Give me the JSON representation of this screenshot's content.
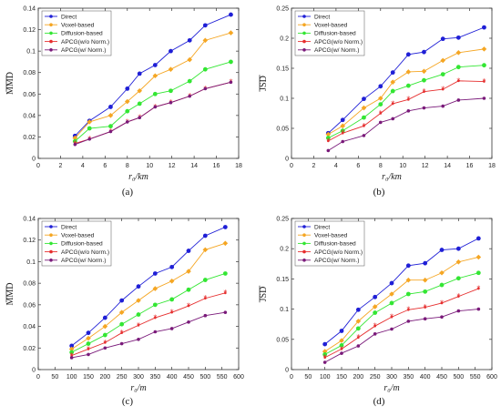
{
  "chart_data": [
    {
      "type": "line",
      "panel_label": "(a)",
      "xlabel": "r₀/km",
      "ylabel": "MMD",
      "xlim": [
        0,
        18
      ],
      "ylim": [
        0,
        0.14
      ],
      "xticks": [
        0,
        2,
        4,
        6,
        8,
        10,
        12,
        14,
        16,
        18
      ],
      "yticks": [
        0,
        0.02,
        0.04,
        0.06,
        0.08,
        0.1,
        0.12,
        0.14
      ],
      "xtick_labels": [
        "0",
        "2",
        "4",
        "6",
        "8",
        "10",
        "12",
        "14",
        "16",
        "18"
      ],
      "ytick_labels": [
        "0",
        "0.02",
        "0.04",
        "0.06",
        "0.08",
        "0.1",
        "0.12",
        "0.14"
      ],
      "grid": false,
      "legend_position": "top-left",
      "x": [
        3.3,
        4.6,
        6.5,
        8.0,
        9.1,
        10.5,
        11.9,
        13.6,
        15.0,
        17.3
      ],
      "series": [
        {
          "name": "Direct",
          "color": "#1f1fd6",
          "values": [
            0.021,
            0.035,
            0.048,
            0.065,
            0.079,
            0.087,
            0.1,
            0.11,
            0.124,
            0.134
          ]
        },
        {
          "name": "Voxel-based",
          "color": "#f5a623",
          "values": [
            0.019,
            0.034,
            0.04,
            0.053,
            0.063,
            0.077,
            0.083,
            0.092,
            0.11,
            0.117
          ]
        },
        {
          "name": "Diffusion-based",
          "color": "#33e633",
          "values": [
            0.016,
            0.028,
            0.03,
            0.044,
            0.051,
            0.06,
            0.063,
            0.072,
            0.083,
            0.09
          ]
        },
        {
          "name": "APCG(w/o Norm.)",
          "color": "#e62e2e",
          "values": [
            0.014,
            0.018,
            0.025,
            0.034,
            0.038,
            0.048,
            0.052,
            0.058,
            0.065,
            0.071
          ]
        },
        {
          "name": "APCG(w/ Norm.)",
          "color": "#7a1a7a",
          "values": [
            0.013,
            0.018,
            0.025,
            0.034,
            0.038,
            0.048,
            0.052,
            0.058,
            0.065,
            0.071
          ]
        }
      ]
    },
    {
      "type": "line",
      "panel_label": "(b)",
      "xlabel": "r₀/km",
      "ylabel": "JSD",
      "xlim": [
        0,
        18
      ],
      "ylim": [
        0,
        0.25
      ],
      "xticks": [
        0,
        2,
        4,
        6,
        8,
        10,
        12,
        14,
        16,
        18
      ],
      "yticks": [
        0,
        0.05,
        0.1,
        0.15,
        0.2,
        0.25
      ],
      "xtick_labels": [
        "0",
        "2",
        "4",
        "6",
        "8",
        "10",
        "12",
        "14",
        "16",
        "18"
      ],
      "ytick_labels": [
        "0",
        "0.05",
        "0.1",
        "0.15",
        "0.2",
        "0.25"
      ],
      "grid": false,
      "legend_position": "top-left",
      "x": [
        3.3,
        4.6,
        6.5,
        8.0,
        9.1,
        10.5,
        11.9,
        13.6,
        15.0,
        17.3
      ],
      "series": [
        {
          "name": "Direct",
          "color": "#1f1fd6",
          "values": [
            0.042,
            0.064,
            0.099,
            0.12,
            0.143,
            0.173,
            0.177,
            0.199,
            0.201,
            0.218
          ]
        },
        {
          "name": "Voxel-based",
          "color": "#f5a623",
          "values": [
            0.04,
            0.054,
            0.084,
            0.1,
            0.127,
            0.144,
            0.145,
            0.163,
            0.176,
            0.182
          ]
        },
        {
          "name": "Diffusion-based",
          "color": "#33e633",
          "values": [
            0.034,
            0.046,
            0.068,
            0.09,
            0.112,
            0.121,
            0.13,
            0.14,
            0.152,
            0.155
          ]
        },
        {
          "name": "APCG(w/o Norm.)",
          "color": "#e62e2e",
          "values": [
            0.029,
            0.042,
            0.054,
            0.075,
            0.091,
            0.098,
            0.111,
            0.115,
            0.129,
            0.128
          ]
        },
        {
          "name": "APCG(w/ Norm.)",
          "color": "#7a1a7a",
          "values": [
            0.013,
            0.028,
            0.038,
            0.06,
            0.066,
            0.079,
            0.084,
            0.087,
            0.097,
            0.1
          ]
        }
      ]
    },
    {
      "type": "line",
      "panel_label": "(c)",
      "xlabel": "r₀/m",
      "ylabel": "MMD",
      "xlim": [
        0,
        600
      ],
      "ylim": [
        0,
        0.14
      ],
      "xticks": [
        0,
        50,
        100,
        150,
        200,
        250,
        300,
        350,
        400,
        450,
        500,
        550,
        600
      ],
      "yticks": [
        0,
        0.02,
        0.04,
        0.06,
        0.08,
        0.1,
        0.12,
        0.14
      ],
      "xtick_labels": [
        "0",
        "50",
        "100",
        "150",
        "200",
        "250",
        "300",
        "350",
        "400",
        "450",
        "500",
        "550",
        "600"
      ],
      "ytick_labels": [
        "0",
        "0.02",
        "0.04",
        "0.06",
        "0.08",
        "0.1",
        "0.12",
        "0.14"
      ],
      "grid": false,
      "legend_position": "top-left",
      "x": [
        100,
        150,
        200,
        250,
        300,
        350,
        400,
        450,
        500,
        560
      ],
      "series": [
        {
          "name": "Direct",
          "color": "#1f1fd6",
          "values": [
            0.022,
            0.034,
            0.048,
            0.064,
            0.077,
            0.089,
            0.095,
            0.11,
            0.124,
            0.132
          ]
        },
        {
          "name": "Voxel-based",
          "color": "#f5a623",
          "values": [
            0.019,
            0.029,
            0.04,
            0.053,
            0.064,
            0.075,
            0.082,
            0.091,
            0.111,
            0.117
          ]
        },
        {
          "name": "Diffusion-based",
          "color": "#33e633",
          "values": [
            0.016,
            0.024,
            0.032,
            0.042,
            0.051,
            0.06,
            0.065,
            0.074,
            0.083,
            0.089
          ]
        },
        {
          "name": "APCG(w/o Norm.)",
          "color": "#e62e2e",
          "values": [
            0.013,
            0.019,
            0.025,
            0.034,
            0.041,
            0.048,
            0.053,
            0.059,
            0.066,
            0.071
          ]
        },
        {
          "name": "APCG(w/ Norm.)",
          "color": "#7a1a7a",
          "values": [
            0.011,
            0.014,
            0.02,
            0.024,
            0.028,
            0.035,
            0.038,
            0.044,
            0.05,
            0.053
          ]
        }
      ]
    },
    {
      "type": "line",
      "panel_label": "(d)",
      "xlabel": "r₀/m",
      "ylabel": "JSD",
      "xlim": [
        0,
        600
      ],
      "ylim": [
        0,
        0.25
      ],
      "xticks": [
        0,
        50,
        100,
        150,
        200,
        250,
        300,
        350,
        400,
        450,
        500,
        550,
        600
      ],
      "yticks": [
        0,
        0.05,
        0.1,
        0.15,
        0.2,
        0.25
      ],
      "xtick_labels": [
        "0",
        "50",
        "100",
        "150",
        "200",
        "250",
        "300",
        "350",
        "400",
        "450",
        "500",
        "550",
        "600"
      ],
      "ytick_labels": [
        "0",
        "0.05",
        "0.1",
        "0.15",
        "0.2",
        "0.25"
      ],
      "grid": false,
      "legend_position": "top-left",
      "x": [
        100,
        150,
        200,
        250,
        300,
        350,
        400,
        450,
        500,
        560
      ],
      "series": [
        {
          "name": "Direct",
          "color": "#1f1fd6",
          "values": [
            0.042,
            0.064,
            0.099,
            0.12,
            0.143,
            0.172,
            0.176,
            0.198,
            0.2,
            0.217
          ]
        },
        {
          "name": "Voxel-based",
          "color": "#f5a623",
          "values": [
            0.03,
            0.048,
            0.08,
            0.104,
            0.125,
            0.148,
            0.148,
            0.16,
            0.178,
            0.186
          ]
        },
        {
          "name": "Diffusion-based",
          "color": "#33e633",
          "values": [
            0.025,
            0.04,
            0.068,
            0.094,
            0.11,
            0.125,
            0.129,
            0.14,
            0.151,
            0.16
          ]
        },
        {
          "name": "APCG(w/o Norm.)",
          "color": "#e62e2e",
          "values": [
            0.02,
            0.034,
            0.053,
            0.072,
            0.087,
            0.099,
            0.103,
            0.11,
            0.121,
            0.134
          ]
        },
        {
          "name": "APCG(w/ Norm.)",
          "color": "#7a1a7a",
          "values": [
            0.012,
            0.027,
            0.039,
            0.059,
            0.067,
            0.08,
            0.084,
            0.087,
            0.097,
            0.1
          ]
        }
      ]
    }
  ]
}
